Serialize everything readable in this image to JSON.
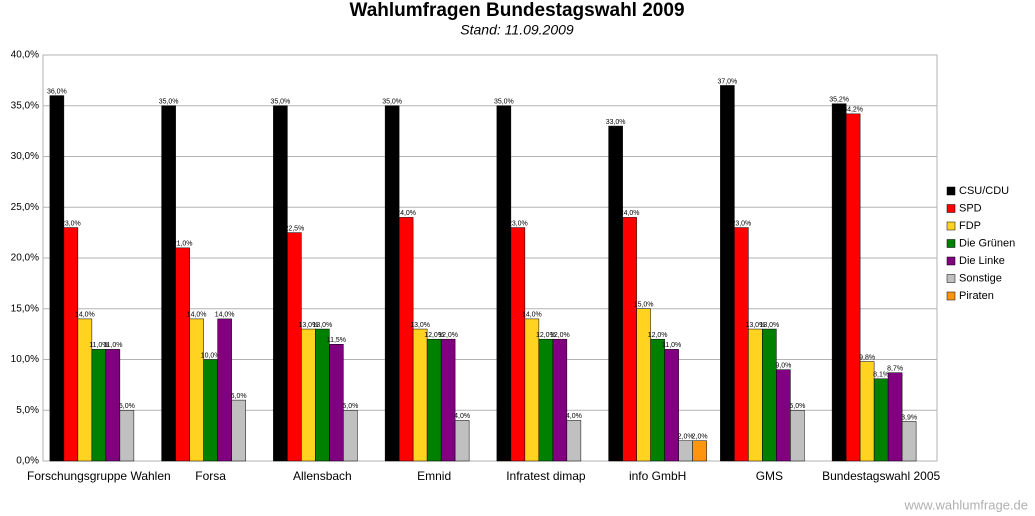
{
  "chart_data": {
    "type": "bar",
    "title": "Wahlumfragen Bundestagswahl 2009",
    "subtitle": "Stand: 11.09.2009",
    "watermark": "www.wahlumfrage.de",
    "categories": [
      "Forschungsgruppe Wahlen",
      "Forsa",
      "Allensbach",
      "Emnid",
      "Infratest dimap",
      "info GmbH",
      "GMS",
      "Bundestagswahl 2005"
    ],
    "series": [
      {
        "name": "CSU/CDU",
        "color": "#000000",
        "values": [
          36,
          35,
          35,
          35,
          35,
          33,
          37,
          35.2
        ],
        "value_labels": [
          "36,0%",
          "35,0%",
          "35,0%",
          "35,0%",
          "35,0%",
          "33,0%",
          "37,0%",
          "35,2%"
        ]
      },
      {
        "name": "SPD",
        "color": "#ff0000",
        "values": [
          23,
          21,
          22.5,
          24,
          23,
          24,
          23,
          34.2
        ],
        "value_labels": [
          "23,0%",
          "21,0%",
          "22,5%",
          "24,0%",
          "23,0%",
          "24,0%",
          "23,0%",
          "34,2%"
        ]
      },
      {
        "name": "FDP",
        "color": "#ffd320",
        "values": [
          14,
          14,
          13,
          13,
          14,
          15,
          13,
          9.8
        ],
        "value_labels": [
          "14,0%",
          "14,0%",
          "13,0%",
          "13,0%",
          "14,0%",
          "15,0%",
          "13,0%",
          "9,8%"
        ]
      },
      {
        "name": "Die Grünen",
        "color": "#008000",
        "values": [
          11,
          10,
          13,
          12,
          12,
          12,
          13,
          8.1
        ],
        "value_labels": [
          "11,0%",
          "10,0%",
          "13,0%",
          "12,0%",
          "12,0%",
          "12,0%",
          "13,0%",
          "8,1%"
        ]
      },
      {
        "name": "Die Linke",
        "color": "#800080",
        "values": [
          11,
          14,
          11.5,
          12,
          12,
          11,
          9,
          8.7
        ],
        "value_labels": [
          "11,0%",
          "14,0%",
          "11,5%",
          "12,0%",
          "12,0%",
          "11,0%",
          "9,0%",
          "8,7%"
        ]
      },
      {
        "name": "Sonstige",
        "color": "#c0c0c0",
        "values": [
          5,
          6,
          5,
          4,
          4,
          2,
          5,
          3.9
        ],
        "value_labels": [
          "5,0%",
          "6,0%",
          "5,0%",
          "4,0%",
          "4,0%",
          "2,0%",
          "5,0%",
          "3,9%"
        ]
      },
      {
        "name": "Piraten",
        "color": "#ff950e",
        "values": [
          null,
          null,
          null,
          null,
          null,
          2,
          null,
          null
        ],
        "value_labels": [
          null,
          null,
          null,
          null,
          null,
          "2,0%",
          null,
          null
        ]
      }
    ],
    "ylim": [
      0,
      40
    ],
    "yticks": [
      {
        "value": 0,
        "label": "0,0%"
      },
      {
        "value": 5,
        "label": "5,0%"
      },
      {
        "value": 10,
        "label": "10,0%"
      },
      {
        "value": 15,
        "label": "15,0%"
      },
      {
        "value": 20,
        "label": "20,0%"
      },
      {
        "value": 25,
        "label": "25,0%"
      },
      {
        "value": 30,
        "label": "30,0%"
      },
      {
        "value": 35,
        "label": "35,0%"
      },
      {
        "value": 40,
        "label": "40,0%"
      }
    ],
    "grid": true,
    "legend": "right"
  }
}
